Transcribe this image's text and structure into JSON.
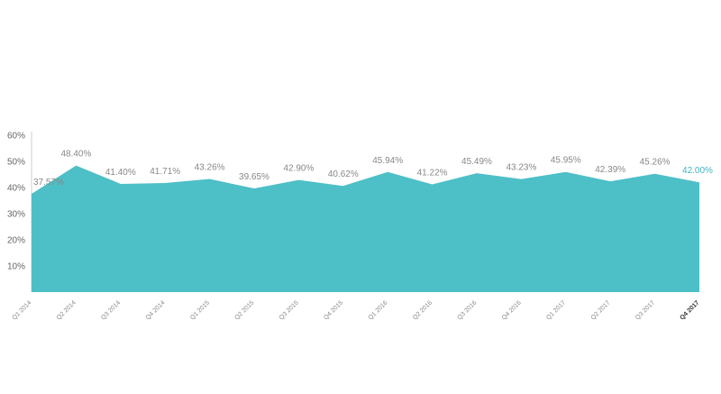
{
  "chart_data": {
    "type": "area",
    "title": "",
    "xlabel": "",
    "ylabel": "",
    "categories": [
      "Q1 2014",
      "Q2 2014",
      "Q3 2014",
      "Q4 2014",
      "Q1 2015",
      "Q2 2015",
      "Q3 2015",
      "Q4 2015",
      "Q1 2016",
      "Q2 2016",
      "Q3 2016",
      "Q4 2016",
      "Q1 2017",
      "Q2 2017",
      "Q3 2017",
      "Q4 2017"
    ],
    "values": [
      37.57,
      48.4,
      41.4,
      41.71,
      43.26,
      39.65,
      42.9,
      40.62,
      45.94,
      41.22,
      45.49,
      43.23,
      45.95,
      42.39,
      45.26,
      42.0
    ],
    "value_labels": [
      "37.57%",
      "48.40%",
      "41.40%",
      "41.71%",
      "43.26%",
      "39.65%",
      "42.90%",
      "40.62%",
      "45.94%",
      "41.22%",
      "45.49%",
      "43.23%",
      "45.95%",
      "42.39%",
      "45.26%",
      "42.00%"
    ],
    "y_ticks": [
      "10%",
      "20%",
      "30%",
      "40%",
      "50%",
      "60%"
    ],
    "y_tick_values": [
      10,
      20,
      30,
      40,
      50,
      60
    ],
    "ylim": [
      0,
      60
    ],
    "grid": false,
    "legend": "none",
    "colors": {
      "fill": "#4dbfc7",
      "axis": "#cccccc",
      "highlight_label": "#3fb5c0"
    }
  }
}
